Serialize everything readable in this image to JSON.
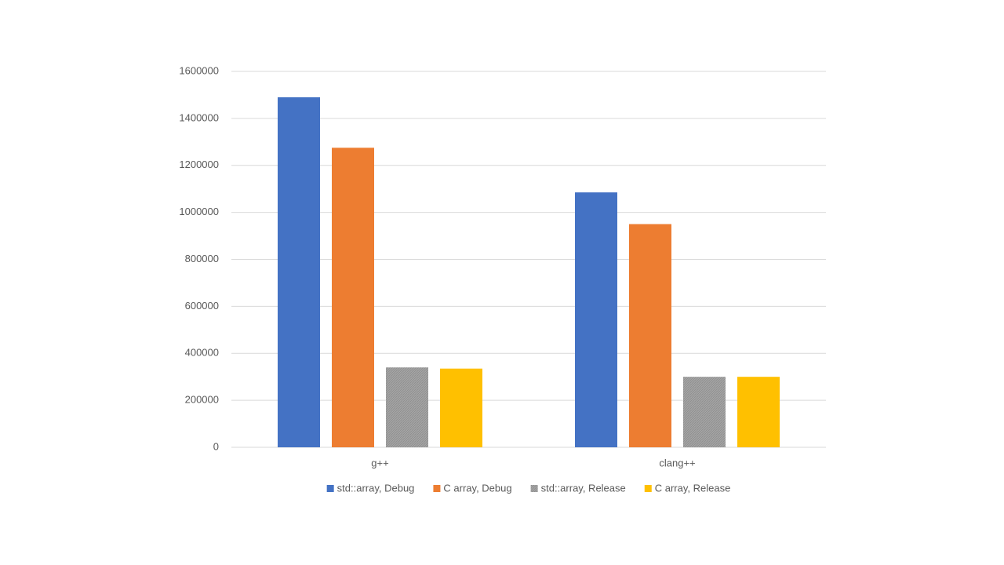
{
  "chart_data": {
    "type": "bar",
    "categories": [
      "g++",
      "clang++"
    ],
    "series": [
      {
        "name": "std::array, Debug",
        "color": "#4472c4",
        "values": [
          1490000,
          1085000
        ]
      },
      {
        "name": "C array, Debug",
        "color": "#ed7d31",
        "values": [
          1275000,
          950000
        ]
      },
      {
        "name": "std::array, Release",
        "color": "#a5a5a5",
        "values": [
          340000,
          300000
        ]
      },
      {
        "name": "C array, Release",
        "color": "#ffc000",
        "values": [
          335000,
          300000
        ]
      }
    ],
    "ylim": [
      0,
      1600000
    ],
    "yticks": [
      0,
      200000,
      400000,
      600000,
      800000,
      1000000,
      1200000,
      1400000,
      1600000
    ],
    "grid": true,
    "legend": "bottom"
  }
}
